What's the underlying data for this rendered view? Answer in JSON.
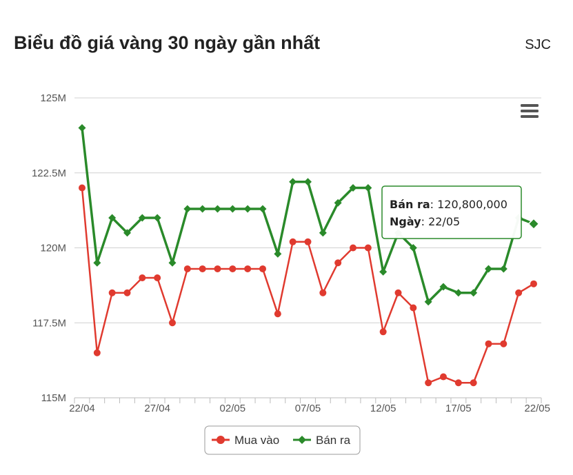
{
  "header": {
    "title": "Biểu đồ giá vàng 30 ngày gần nhất",
    "brand": "SJC"
  },
  "colors": {
    "mua_vao": "#e03a2f",
    "ban_ra": "#2a8a2a",
    "grid": "#d0d0d0",
    "tooltip_border": "#2a8a2a"
  },
  "icons": {
    "menu": "hamburger-menu-icon"
  },
  "tooltip": {
    "label_price": "Bán ra",
    "value_price": "120,800,000",
    "label_date": "Ngày",
    "value_date": "22/05"
  },
  "chart_data": {
    "type": "line",
    "title": "Biểu đồ giá vàng 30 ngày gần nhất",
    "ylim": [
      115000000,
      125000000
    ],
    "y_ticks": [
      115000000,
      117500000,
      120000000,
      122500000,
      125000000
    ],
    "y_tick_labels": [
      "115M",
      "117.5M",
      "120M",
      "122.5M",
      "125M"
    ],
    "x_tick_labels": [
      "22/04",
      "27/04",
      "02/05",
      "07/05",
      "12/05",
      "17/05",
      "22/05"
    ],
    "x_tick_label_indices": [
      0,
      5,
      10,
      15,
      20,
      25,
      30
    ],
    "grid": true,
    "legend_position": "bottom-center",
    "dates": [
      "22/04",
      "23/04",
      "24/04",
      "25/04",
      "26/04",
      "27/04",
      "28/04",
      "29/04",
      "30/04",
      "01/05",
      "02/05",
      "03/05",
      "04/05",
      "05/05",
      "06/05",
      "07/05",
      "08/05",
      "09/05",
      "10/05",
      "11/05",
      "12/05",
      "13/05",
      "14/05",
      "15/05",
      "16/05",
      "17/05",
      "18/05",
      "19/05",
      "20/05",
      "21/05",
      "22/05"
    ],
    "series": [
      {
        "name": "Mua vào",
        "values": [
          122000000,
          116500000,
          118500000,
          118500000,
          119000000,
          119000000,
          117500000,
          119300000,
          119300000,
          119300000,
          119300000,
          119300000,
          119300000,
          117800000,
          120200000,
          120200000,
          118500000,
          119500000,
          120000000,
          120000000,
          117200000,
          118500000,
          118000000,
          115500000,
          115700000,
          115500000,
          115500000,
          116800000,
          116800000,
          118500000,
          118800000
        ]
      },
      {
        "name": "Bán ra",
        "values": [
          124000000,
          119500000,
          121000000,
          120500000,
          121000000,
          121000000,
          119500000,
          121300000,
          121300000,
          121300000,
          121300000,
          121300000,
          121300000,
          119800000,
          122200000,
          122200000,
          120500000,
          121500000,
          122000000,
          122000000,
          119200000,
          120500000,
          120000000,
          118200000,
          118700000,
          118500000,
          118500000,
          119300000,
          119300000,
          121000000,
          120800000
        ]
      }
    ]
  }
}
